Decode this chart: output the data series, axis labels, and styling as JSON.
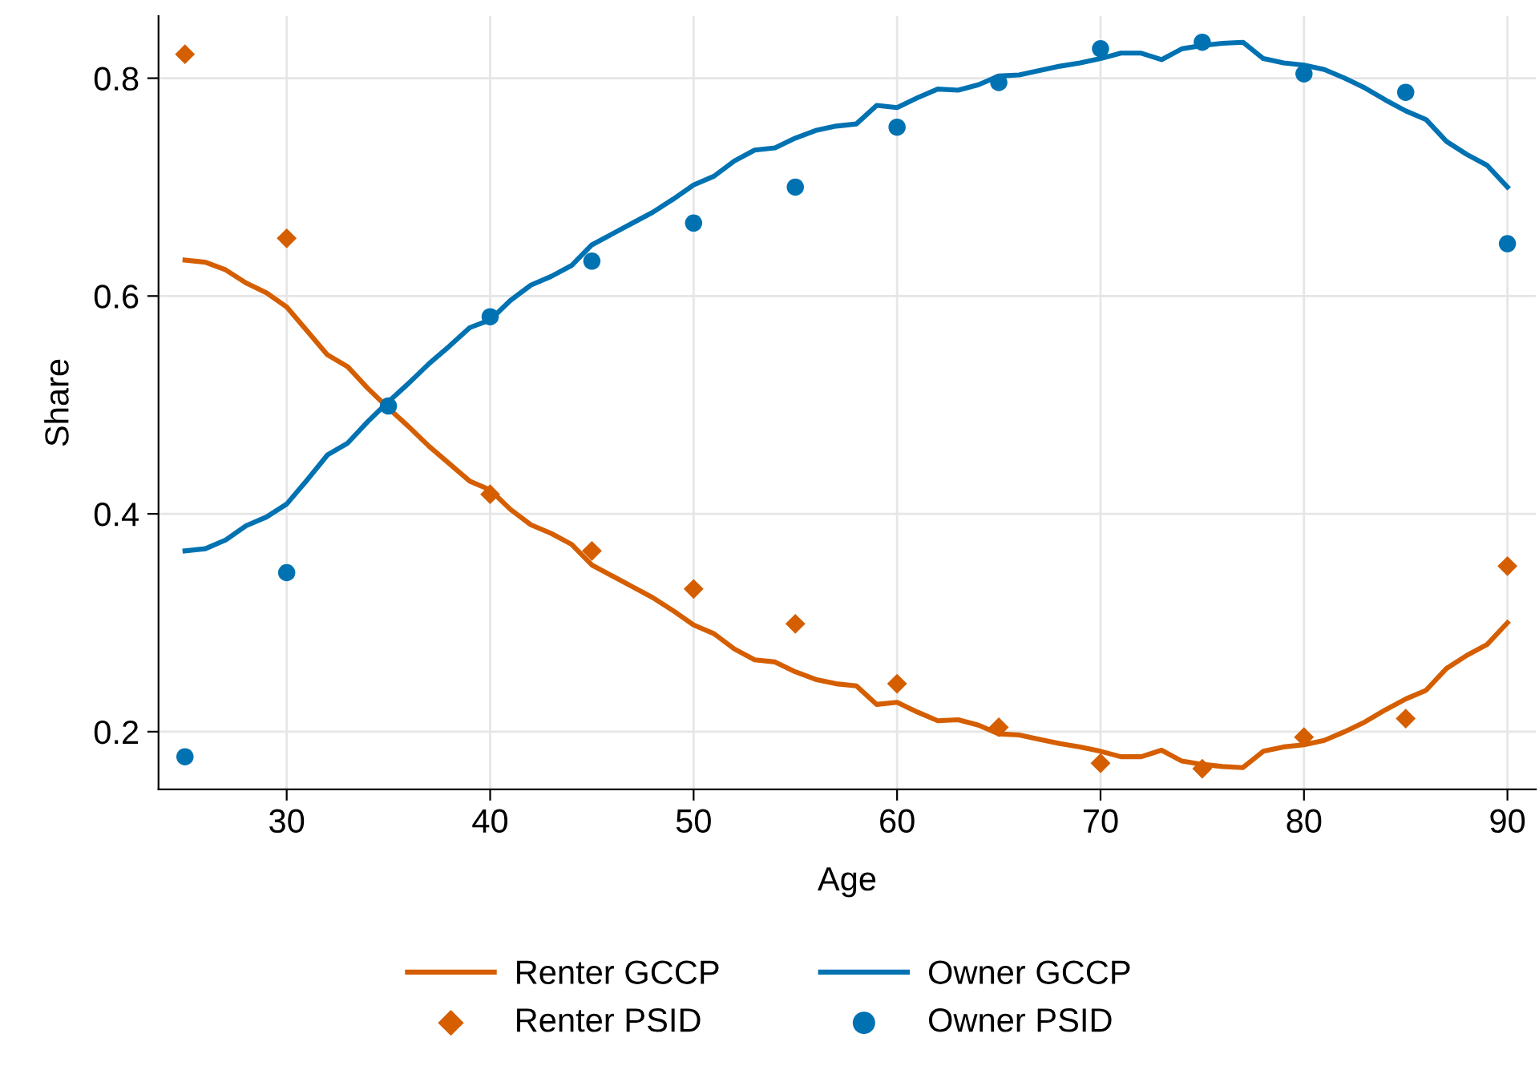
{
  "chart_data": {
    "type": "line",
    "xlabel": "Age",
    "ylabel": "Share",
    "xlim": [
      23.7,
      91.4
    ],
    "ylim": [
      0.147,
      0.857
    ],
    "xticks": [
      30,
      40,
      50,
      60,
      70,
      80,
      90
    ],
    "yticks": [
      0.2,
      0.4,
      0.6,
      0.8
    ],
    "grid": true,
    "legend": "bottom",
    "series": [
      {
        "name": "Renter GCCP",
        "color": "#d55e00",
        "line_style": "solid",
        "marker": "none",
        "x": [
          25,
          26,
          27,
          28,
          29,
          30,
          31,
          32,
          33,
          34,
          35,
          36,
          37,
          38,
          39,
          40,
          41,
          42,
          43,
          44,
          45,
          46,
          47,
          48,
          49,
          50,
          51,
          52,
          53,
          54,
          55,
          56,
          57,
          58,
          59,
          60,
          61,
          62,
          63,
          64,
          65,
          66,
          67,
          68,
          69,
          70,
          71,
          72,
          73,
          74,
          75,
          76,
          77,
          78,
          79,
          80,
          81,
          82,
          83,
          84,
          85,
          86,
          87,
          88,
          89,
          90
        ],
        "values": [
          0.633,
          0.631,
          0.624,
          0.612,
          0.603,
          0.59,
          0.568,
          0.546,
          0.535,
          0.515,
          0.497,
          0.48,
          0.462,
          0.446,
          0.43,
          0.422,
          0.404,
          0.39,
          0.382,
          0.372,
          0.353,
          0.343,
          0.333,
          0.323,
          0.311,
          0.298,
          0.29,
          0.276,
          0.266,
          0.264,
          0.255,
          0.248,
          0.244,
          0.242,
          0.225,
          0.227,
          0.218,
          0.21,
          0.211,
          0.206,
          0.198,
          0.197,
          0.193,
          0.189,
          0.186,
          0.182,
          0.177,
          0.177,
          0.183,
          0.173,
          0.17,
          0.168,
          0.167,
          0.182,
          0.186,
          0.188,
          0.192,
          0.2,
          0.209,
          0.22,
          0.23,
          0.238,
          0.258,
          0.27,
          0.28,
          0.3
        ]
      },
      {
        "name": "Renter PSID",
        "type": "scatter",
        "color": "#d55e00",
        "marker": "diamond",
        "x": [
          25,
          30,
          40,
          45,
          50,
          55,
          60,
          65,
          70,
          75,
          80,
          85,
          90
        ],
        "values": [
          0.822,
          0.653,
          0.418,
          0.366,
          0.331,
          0.299,
          0.244,
          0.204,
          0.171,
          0.166,
          0.195,
          0.212,
          0.352
        ]
      },
      {
        "name": "Owner GCCP",
        "color": "#0072b2",
        "line_style": "solid",
        "marker": "none",
        "x": [
          25,
          26,
          27,
          28,
          29,
          30,
          31,
          32,
          33,
          34,
          35,
          36,
          37,
          38,
          39,
          40,
          41,
          42,
          43,
          44,
          45,
          46,
          47,
          48,
          49,
          50,
          51,
          52,
          53,
          54,
          55,
          56,
          57,
          58,
          59,
          60,
          61,
          62,
          63,
          64,
          65,
          66,
          67,
          68,
          69,
          70,
          71,
          72,
          73,
          74,
          75,
          76,
          77,
          78,
          79,
          80,
          81,
          82,
          83,
          84,
          85,
          86,
          87,
          88,
          89,
          90
        ],
        "values": [
          0.366,
          0.368,
          0.376,
          0.389,
          0.397,
          0.409,
          0.431,
          0.454,
          0.465,
          0.485,
          0.503,
          0.52,
          0.538,
          0.554,
          0.571,
          0.578,
          0.596,
          0.61,
          0.618,
          0.628,
          0.647,
          0.657,
          0.667,
          0.677,
          0.689,
          0.702,
          0.71,
          0.724,
          0.734,
          0.736,
          0.745,
          0.752,
          0.756,
          0.758,
          0.775,
          0.773,
          0.782,
          0.79,
          0.789,
          0.794,
          0.802,
          0.803,
          0.807,
          0.811,
          0.814,
          0.818,
          0.823,
          0.823,
          0.817,
          0.827,
          0.83,
          0.832,
          0.833,
          0.818,
          0.814,
          0.812,
          0.808,
          0.8,
          0.791,
          0.78,
          0.77,
          0.762,
          0.742,
          0.73,
          0.72,
          0.7
        ]
      },
      {
        "name": "Owner PSID",
        "type": "scatter",
        "color": "#0072b2",
        "marker": "circle",
        "x": [
          25,
          30,
          35,
          40,
          45,
          50,
          55,
          60,
          65,
          70,
          75,
          80,
          85,
          90
        ],
        "values": [
          0.177,
          0.346,
          0.499,
          0.581,
          0.632,
          0.667,
          0.7,
          0.755,
          0.796,
          0.827,
          0.833,
          0.804,
          0.787,
          0.648
        ]
      }
    ]
  }
}
